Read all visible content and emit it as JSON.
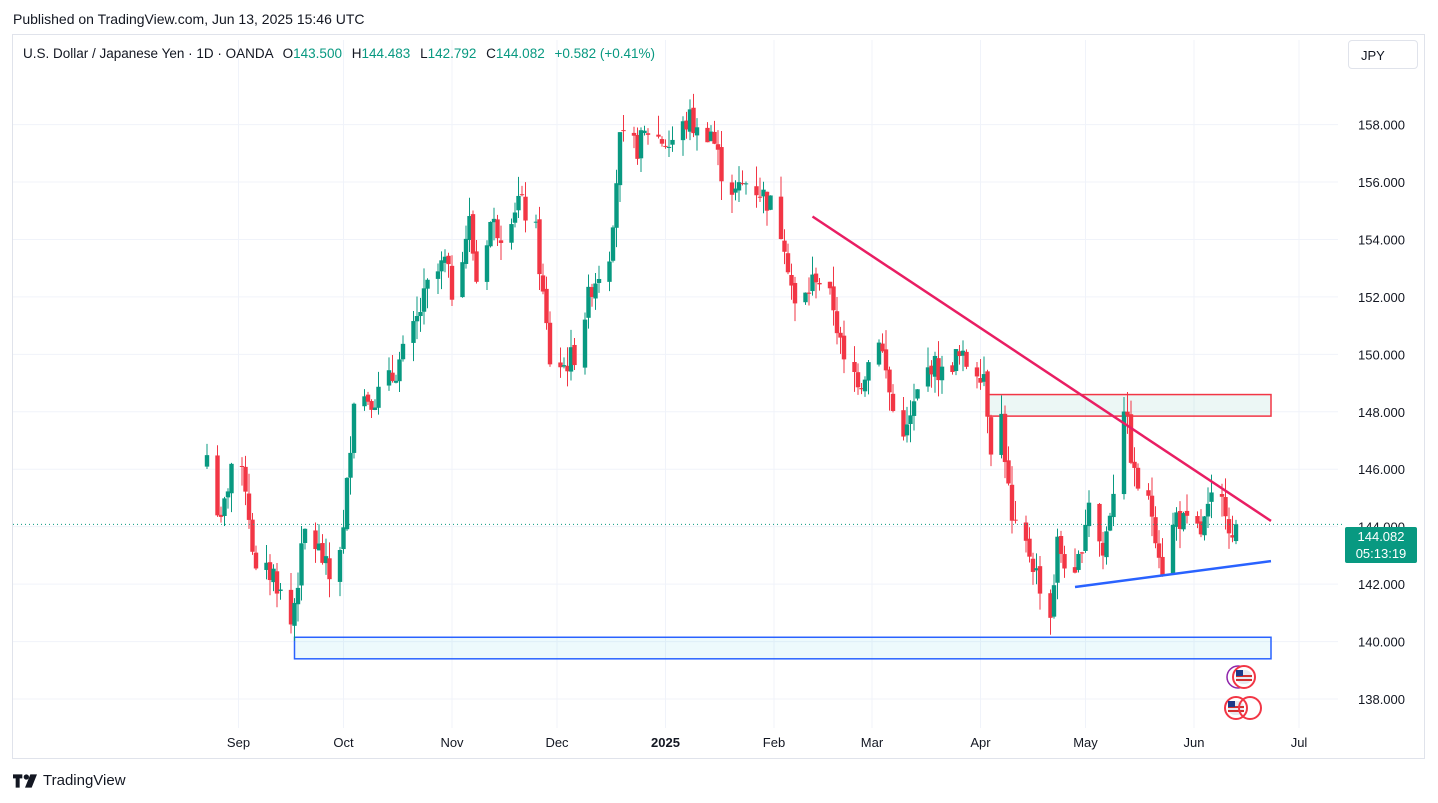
{
  "published": "Published on TradingView.com, Jun 13, 2025 15:46 UTC",
  "legend": {
    "symbol": "U.S. Dollar / Japanese Yen · 1D · OANDA",
    "o_label": "O",
    "o_val": "143.500",
    "h_label": "H",
    "h_val": "144.483",
    "l_label": "L",
    "l_val": "142.792",
    "c_label": "C",
    "c_val": "144.082",
    "change": "+0.582 (+0.41%)"
  },
  "currency_button": "JPY",
  "last_price": "144.082",
  "countdown": "05:13:19",
  "footer_brand": "TradingView",
  "colors": {
    "up": "#089981",
    "down": "#f23645",
    "resistance": "#e91e63",
    "support": "#2962ff"
  },
  "chart_data": {
    "type": "candlestick",
    "y_ticks": [
      "158.000",
      "156.000",
      "154.000",
      "152.000",
      "150.000",
      "148.000",
      "146.000",
      "144.000",
      "142.000",
      "140.000",
      "138.000"
    ],
    "x_ticks": [
      "Sep",
      "Oct",
      "Nov",
      "Dec",
      "2025",
      "Feb",
      "Mar",
      "Apr",
      "May",
      "Jun",
      "Jul"
    ],
    "ylim": [
      137.2,
      159.9
    ],
    "grid": true,
    "close_path": [
      [
        "2024-08-23",
        146.5
      ],
      [
        "2024-08-27",
        144.0
      ],
      [
        "2024-08-30",
        146.2
      ],
      [
        "2024-09-03",
        145.5
      ],
      [
        "2024-09-06",
        142.3
      ],
      [
        "2024-09-11",
        142.4
      ],
      [
        "2024-09-16",
        140.6
      ],
      [
        "2024-09-20",
        143.8
      ],
      [
        "2024-09-24",
        143.2
      ],
      [
        "2024-09-27",
        142.2
      ],
      [
        "2024-10-01",
        143.8
      ],
      [
        "2024-10-04",
        148.6
      ],
      [
        "2024-10-10",
        148.5
      ],
      [
        "2024-10-15",
        149.2
      ],
      [
        "2024-10-21",
        150.8
      ],
      [
        "2024-10-25",
        152.3
      ],
      [
        "2024-10-30",
        153.2
      ],
      [
        "2024-11-01",
        152.2
      ],
      [
        "2024-11-06",
        154.6
      ],
      [
        "2024-11-08",
        152.6
      ],
      [
        "2024-11-12",
        154.6
      ],
      [
        "2024-11-15",
        154.3
      ],
      [
        "2024-11-20",
        155.4
      ],
      [
        "2024-11-25",
        154.2
      ],
      [
        "2024-11-29",
        149.8
      ],
      [
        "2024-12-03",
        149.6
      ],
      [
        "2024-12-06",
        150.0
      ],
      [
        "2024-12-11",
        152.4
      ],
      [
        "2024-12-16",
        153.6
      ],
      [
        "2024-12-19",
        157.4
      ],
      [
        "2024-12-24",
        157.2
      ],
      [
        "2024-12-27",
        157.8
      ],
      [
        "2025-01-02",
        157.3
      ],
      [
        "2025-01-08",
        158.2
      ],
      [
        "2025-01-10",
        157.7
      ],
      [
        "2025-01-14",
        157.8
      ],
      [
        "2025-01-17",
        156.4
      ],
      [
        "2025-01-21",
        155.6
      ],
      [
        "2025-01-24",
        156.0
      ],
      [
        "2025-01-28",
        155.7
      ],
      [
        "2025-01-31",
        155.2
      ],
      [
        "2025-02-04",
        154.0
      ],
      [
        "2025-02-07",
        151.6
      ],
      [
        "2025-02-10",
        152.0
      ],
      [
        "2025-02-13",
        152.8
      ],
      [
        "2025-02-18",
        151.7
      ],
      [
        "2025-02-21",
        149.6
      ],
      [
        "2025-02-26",
        149.1
      ],
      [
        "2025-03-03",
        150.7
      ],
      [
        "2025-03-07",
        148.0
      ],
      [
        "2025-03-11",
        147.3
      ],
      [
        "2025-03-14",
        148.6
      ],
      [
        "2025-03-18",
        149.7
      ],
      [
        "2025-03-21",
        149.3
      ],
      [
        "2025-03-25",
        149.9
      ],
      [
        "2025-03-28",
        149.7
      ],
      [
        "2025-04-02",
        149.4
      ],
      [
        "2025-04-04",
        146.9
      ],
      [
        "2025-04-07",
        147.8
      ],
      [
        "2025-04-10",
        144.0
      ],
      [
        "2025-04-15",
        143.1
      ],
      [
        "2025-04-21",
        140.9
      ],
      [
        "2025-04-23",
        143.4
      ],
      [
        "2025-04-28",
        142.0
      ],
      [
        "2025-05-02",
        145.0
      ],
      [
        "2025-05-06",
        143.0
      ],
      [
        "2025-05-09",
        145.4
      ],
      [
        "2025-05-12",
        148.3
      ],
      [
        "2025-05-15",
        145.7
      ],
      [
        "2025-05-20",
        144.5
      ],
      [
        "2025-05-23",
        142.6
      ],
      [
        "2025-05-27",
        144.4
      ],
      [
        "2025-05-30",
        144.0
      ],
      [
        "2025-06-03",
        143.8
      ],
      [
        "2025-06-06",
        144.8
      ],
      [
        "2025-06-10",
        144.8
      ],
      [
        "2025-06-12",
        143.5
      ],
      [
        "2025-06-13",
        144.082
      ]
    ],
    "resistance_line": [
      [
        "2025-02-12",
        154.8
      ],
      [
        "2025-06-23",
        144.2
      ]
    ],
    "support_line": [
      [
        "2025-04-28",
        141.9
      ],
      [
        "2025-06-23",
        142.8
      ]
    ],
    "zones": [
      {
        "name": "resistance-zone",
        "from": "2025-04-03",
        "to": "2025-06-23",
        "low": 147.85,
        "high": 148.6
      },
      {
        "name": "support-zone",
        "from": "2024-09-17",
        "to": "2025-06-23",
        "low": 139.4,
        "high": 140.15
      }
    ]
  }
}
